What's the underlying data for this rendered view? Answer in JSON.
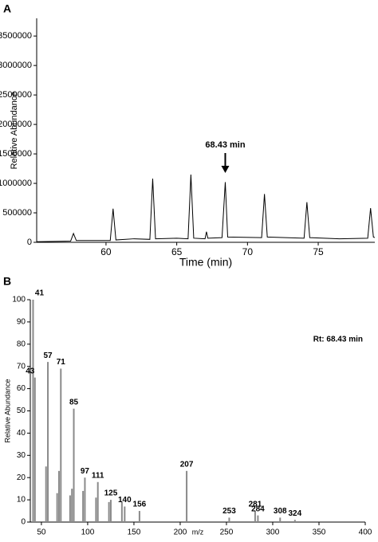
{
  "chart_data": [
    {
      "type": "line",
      "panel_label": "A",
      "ylabel": "Relative Abundance",
      "xlabel": "Time (min)",
      "x": [
        55.1,
        57.5,
        57.7,
        57.9,
        60.3,
        60.5,
        60.7,
        62.0,
        63.1,
        63.3,
        63.5,
        65.0,
        65.8,
        66.0,
        66.2,
        67.0,
        67.1,
        67.2,
        68.2,
        68.43,
        68.6,
        71.0,
        71.2,
        71.4,
        74.0,
        74.2,
        74.4,
        76.5,
        78.5,
        78.7,
        78.9,
        79.0
      ],
      "values": [
        10000,
        20000,
        150000,
        30000,
        30000,
        570000,
        40000,
        60000,
        50000,
        1080000,
        60000,
        70000,
        60000,
        1150000,
        70000,
        60000,
        180000,
        70000,
        80000,
        1020000,
        90000,
        80000,
        820000,
        90000,
        70000,
        680000,
        80000,
        60000,
        70000,
        580000,
        90000,
        80000
      ],
      "color": "#000000",
      "xlim": [
        55.1,
        79
      ],
      "ylim": [
        0,
        3800000
      ],
      "xticks": [
        60,
        65,
        70,
        75
      ],
      "yticks": [
        0,
        500000,
        1000000,
        1500000,
        2000000,
        2500000,
        3000000,
        3500000
      ],
      "annotation": {
        "text": "68.43 min",
        "x": 68.43
      }
    },
    {
      "type": "bar",
      "panel_label": "B",
      "ylabel": "Relative Abundance",
      "xlabel": "m/z",
      "annotation_text": "Rt: 68.43 min",
      "x": [
        41,
        43,
        55,
        57,
        67,
        69,
        71,
        81,
        83,
        85,
        95,
        97,
        109,
        111,
        123,
        125,
        137,
        140,
        156,
        207,
        253,
        281,
        284,
        308,
        324
      ],
      "values": [
        100,
        65,
        25,
        72,
        13,
        23,
        69,
        12,
        15,
        51,
        14,
        20,
        11,
        18,
        9,
        10,
        9,
        7,
        5,
        23,
        2,
        5,
        3,
        2,
        1
      ],
      "peak_labels": [
        "41",
        "43",
        null,
        "57",
        null,
        null,
        "71",
        null,
        null,
        "85",
        null,
        "97",
        null,
        "111",
        null,
        "125",
        null,
        "140",
        "156",
        "207",
        "253",
        "281",
        "284",
        "308",
        "324"
      ],
      "color": "#8a8a8a",
      "xlim": [
        38,
        400
      ],
      "ylim": [
        0,
        100
      ],
      "xticks": [
        50,
        100,
        150,
        200,
        250,
        300,
        350,
        400
      ],
      "yticks": [
        0,
        10,
        20,
        30,
        40,
        50,
        60,
        70,
        80,
        90,
        100
      ]
    }
  ]
}
